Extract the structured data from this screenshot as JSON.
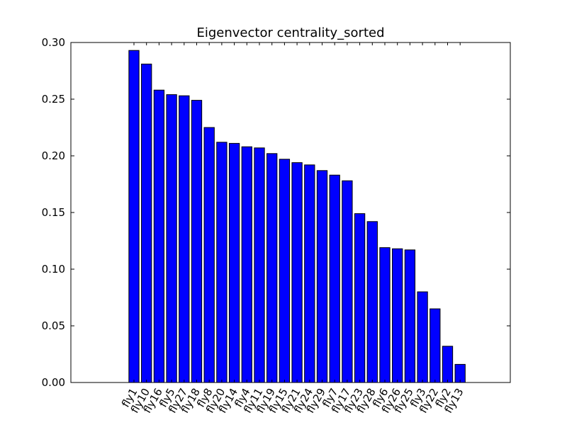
{
  "chart_data": {
    "type": "bar",
    "title": "Eigenvector centrality_sorted",
    "xlabel": "",
    "ylabel": "",
    "ylim": [
      0,
      0.3
    ],
    "yticks": [
      "0.00",
      "0.05",
      "0.10",
      "0.15",
      "0.20",
      "0.25",
      "0.30"
    ],
    "ytick_values": [
      0,
      0.05,
      0.1,
      0.15,
      0.2,
      0.25,
      0.3
    ],
    "grid": false,
    "bar_color": "#0000ff",
    "categories": [
      "fly1",
      "fly10",
      "fly16",
      "fly5",
      "fly27",
      "fly18",
      "fly8",
      "fly20",
      "fly14",
      "fly4",
      "fly11",
      "fly19",
      "fly15",
      "fly21",
      "fly24",
      "fly29",
      "fly7",
      "fly17",
      "fly23",
      "fly28",
      "fly6",
      "fly26",
      "fly25",
      "fly3",
      "fly22",
      "fly2",
      "fly13"
    ],
    "values": [
      0.293,
      0.281,
      0.258,
      0.254,
      0.253,
      0.249,
      0.225,
      0.212,
      0.211,
      0.208,
      0.207,
      0.202,
      0.197,
      0.194,
      0.192,
      0.187,
      0.183,
      0.178,
      0.149,
      0.142,
      0.119,
      0.118,
      0.117,
      0.08,
      0.065,
      0.032,
      0.016
    ]
  }
}
